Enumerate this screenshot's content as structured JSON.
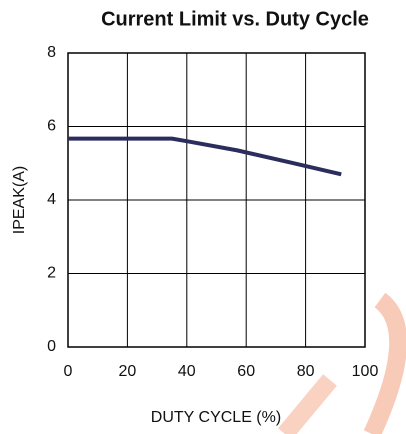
{
  "chart_data": {
    "type": "line",
    "title": "Current Limit vs. Duty Cycle",
    "x_label": "DUTY CYCLE (%)",
    "y_label": "IPEAK(A)",
    "x": [
      0,
      35,
      40,
      57,
      75,
      92
    ],
    "series": [
      {
        "name": "IPEAK",
        "color": "#2b2e5c",
        "values": [
          5.67,
          5.67,
          5.6,
          5.35,
          5.02,
          4.7
        ]
      }
    ],
    "xlim": [
      0,
      100
    ],
    "xticks": [
      0,
      20,
      40,
      60,
      80,
      100
    ],
    "ylim": [
      0,
      8
    ],
    "yticks": [
      0,
      2,
      4,
      6,
      8
    ],
    "grid": true
  }
}
